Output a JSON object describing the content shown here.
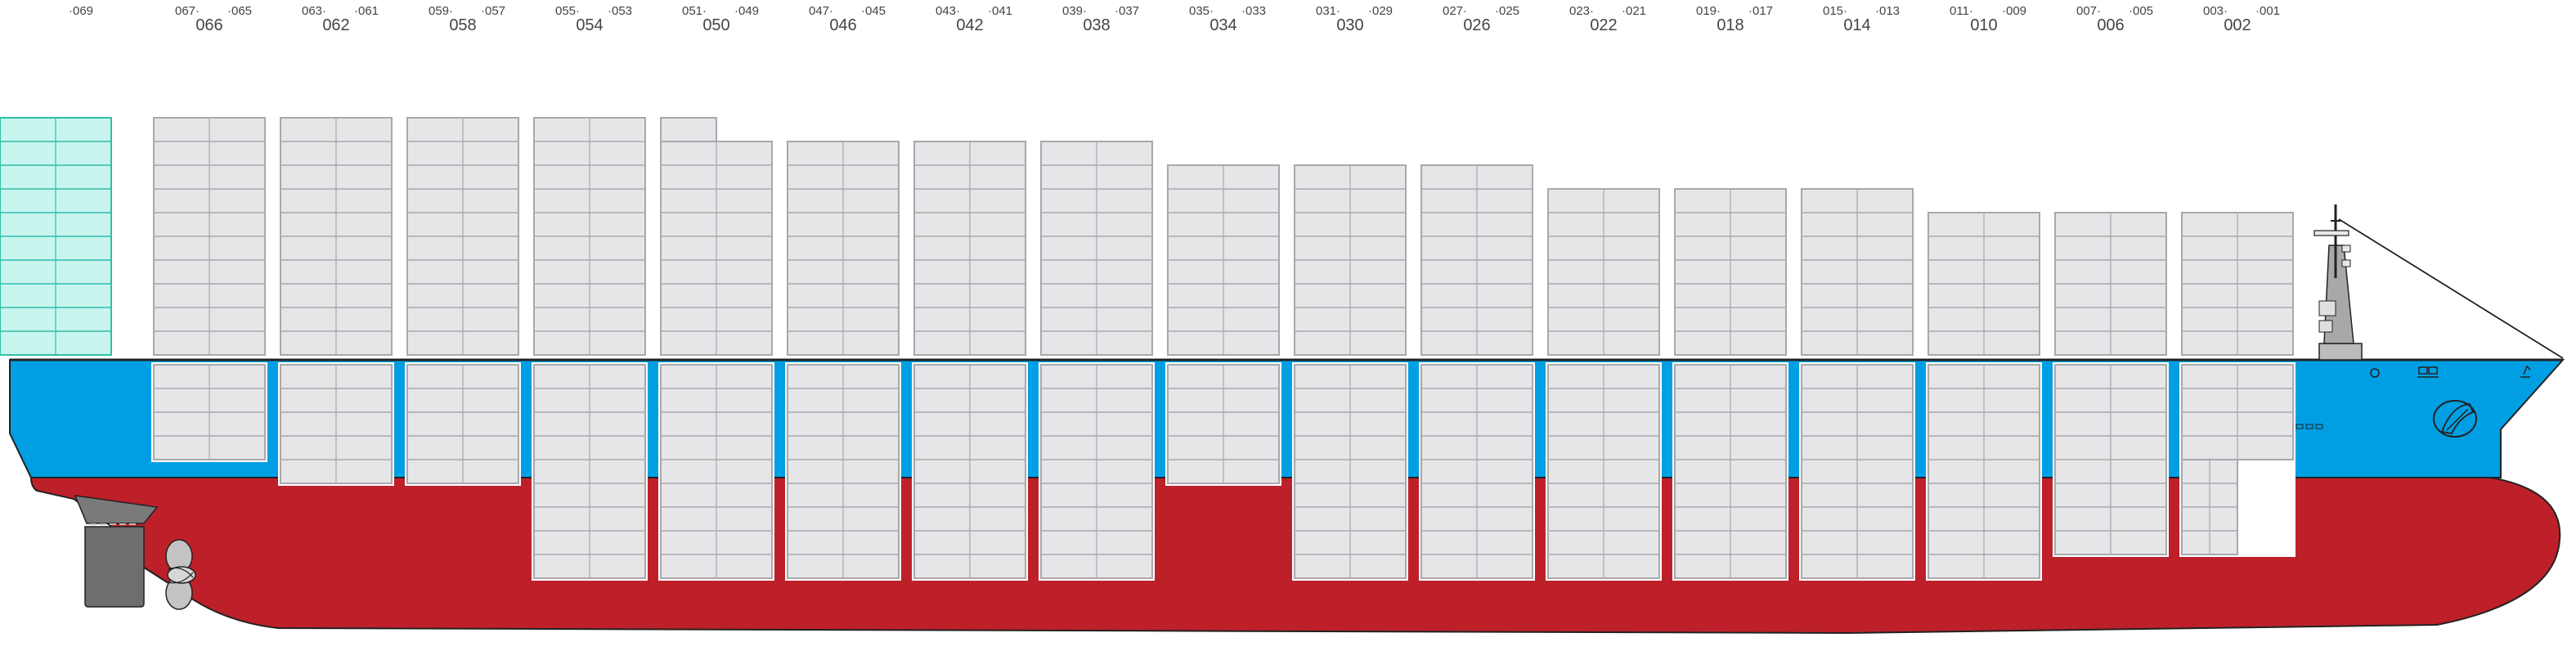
{
  "bay_labels": [
    {
      "big": "",
      "left": "",
      "right": "·069"
    },
    {
      "big": "066",
      "left": "067·",
      "right": "·065"
    },
    {
      "big": "062",
      "left": "063·",
      "right": "·061"
    },
    {
      "big": "058",
      "left": "059·",
      "right": "·057"
    },
    {
      "big": "054",
      "left": "055·",
      "right": "·053"
    },
    {
      "big": "050",
      "left": "051·",
      "right": "·049"
    },
    {
      "big": "046",
      "left": "047·",
      "right": "·045"
    },
    {
      "big": "042",
      "left": "043·",
      "right": "·041"
    },
    {
      "big": "038",
      "left": "039·",
      "right": "·037"
    },
    {
      "big": "034",
      "left": "035·",
      "right": "·033"
    },
    {
      "big": "030",
      "left": "031·",
      "right": "·029"
    },
    {
      "big": "026",
      "left": "027·",
      "right": "·025"
    },
    {
      "big": "022",
      "left": "023·",
      "right": "·021"
    },
    {
      "big": "018",
      "left": "019·",
      "right": "·017"
    },
    {
      "big": "014",
      "left": "015·",
      "right": "·013"
    },
    {
      "big": "010",
      "left": "011·",
      "right": "·009"
    },
    {
      "big": "006",
      "left": "007·",
      "right": "·005"
    },
    {
      "big": "002",
      "left": "003·",
      "right": "·001"
    }
  ],
  "deck_tiers": [
    10,
    10,
    10,
    10,
    9,
    9,
    9,
    9,
    8,
    8,
    8,
    7,
    7,
    7,
    6,
    6,
    6
  ],
  "bay_070_deck_tiers": 10,
  "bay_050_forward_extra_tier": true,
  "hold_tiers": [
    4,
    5,
    5,
    9,
    9,
    9,
    9,
    9,
    5,
    9,
    9,
    9,
    9,
    9,
    9,
    8,
    8
  ],
  "colors": {
    "hull_red": "#be202a",
    "hull_blue": "#009fe3",
    "container": "#e6e6e8",
    "container_line": "#a8a8ad",
    "reefer": "#c8f5ee",
    "reefer_line": "#2fbfa8",
    "rudder": "#6e6e6e",
    "propeller": "#c4c4c4",
    "outline": "#222222"
  }
}
